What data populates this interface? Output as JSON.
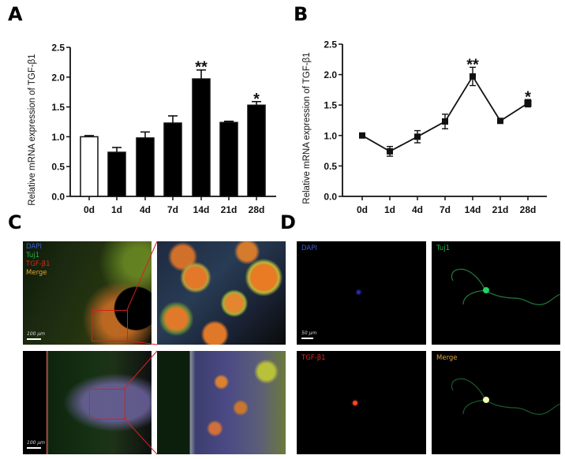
{
  "panels": {
    "a": {
      "letter": "A"
    },
    "b": {
      "letter": "B"
    },
    "c": {
      "letter": "C"
    },
    "d": {
      "letter": "D"
    }
  },
  "colors": {
    "bar_fill": "#000000",
    "control_fill": "#ffffff",
    "axis": "#111111",
    "dapi": "#3a5bd6",
    "tuj1": "#27b34a",
    "tgfb1": "#e0241c",
    "merge": "#e6a338",
    "zoom_box": "#d42020"
  },
  "chart_data": [
    {
      "id": "A",
      "type": "bar",
      "title": "",
      "xlabel": "",
      "ylabel": "Relative mRNA expression of TGF-β1",
      "categories": [
        "0d",
        "1d",
        "4d",
        "7d",
        "14d",
        "21d",
        "28d"
      ],
      "values": [
        1.0,
        0.74,
        0.98,
        1.23,
        1.97,
        1.24,
        1.53
      ],
      "error": [
        0.02,
        0.08,
        0.1,
        0.12,
        0.15,
        0.02,
        0.06
      ],
      "bar_colors": [
        "white",
        "black",
        "black",
        "black",
        "black",
        "black",
        "black"
      ],
      "annotations": [
        {
          "category": "14d",
          "text": "**"
        },
        {
          "category": "28d",
          "text": "*"
        }
      ],
      "ylim": [
        0,
        2.5
      ],
      "yticks": [
        "0.0",
        "0.5",
        "1.0",
        "1.5",
        "2.0",
        "2.5"
      ],
      "grid": false,
      "legend": null
    },
    {
      "id": "B",
      "type": "line",
      "title": "",
      "xlabel": "",
      "ylabel": "Relative mRNA expression of TGF-β1",
      "categories": [
        "0d",
        "1d",
        "4d",
        "7d",
        "14d",
        "21d",
        "28d"
      ],
      "values": [
        1.0,
        0.74,
        0.98,
        1.23,
        1.97,
        1.24,
        1.53
      ],
      "error": [
        0.02,
        0.08,
        0.1,
        0.12,
        0.15,
        0.02,
        0.06
      ],
      "marker": "square",
      "annotations": [
        {
          "category": "14d",
          "text": "**"
        },
        {
          "category": "28d",
          "text": "*"
        }
      ],
      "ylim": [
        0,
        2.5
      ],
      "yticks": [
        "0.0",
        "0.5",
        "1.0",
        "1.5",
        "2.0",
        "2.5"
      ],
      "grid": false,
      "legend": null
    }
  ],
  "panel_c": {
    "legend": [
      "DAPI",
      "Tuj1",
      "TGF-β1",
      "Merge"
    ],
    "scale_bar_top": "100 μm",
    "scale_bar_bottom": "100 μm"
  },
  "panel_d": {
    "tiles": [
      {
        "label": "DAPI",
        "scale": "50 μm"
      },
      {
        "label": "Tuj1"
      },
      {
        "label": "TGF-β1"
      },
      {
        "label": "Merge"
      }
    ]
  }
}
